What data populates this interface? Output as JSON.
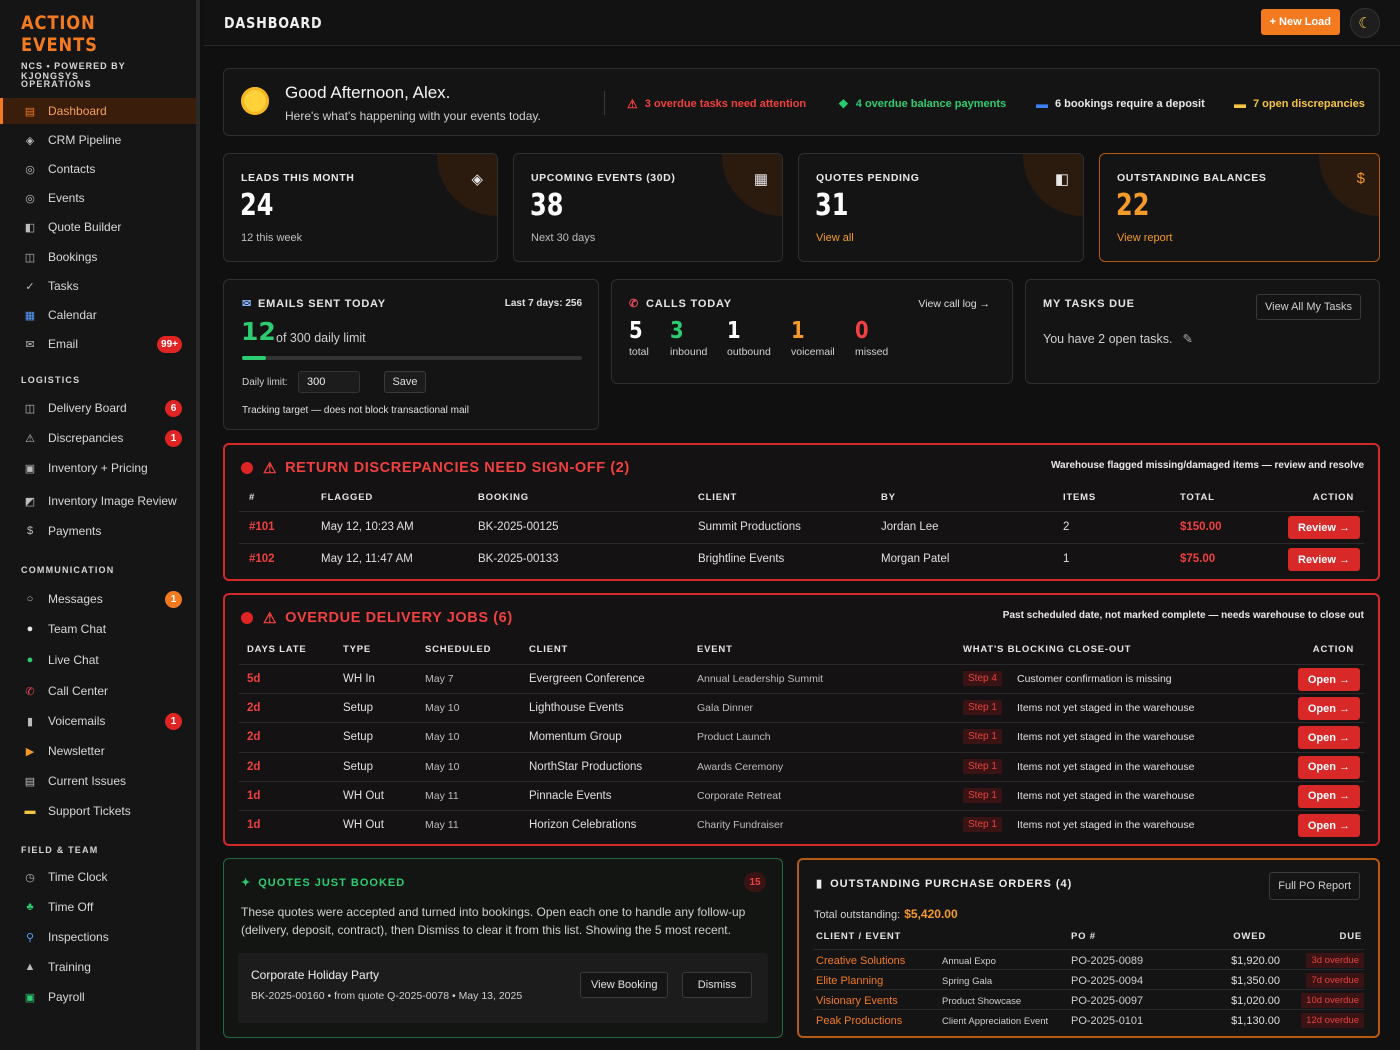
{
  "brand": {
    "title": "ACTION EVENTS",
    "subtitle": "NCS • POWERED BY KJONGSYS"
  },
  "sidebar": {
    "sections": {
      "operations": "OPERATIONS",
      "logistics": "LOGISTICS",
      "communication": "COMMUNICATION",
      "field": "FIELD & TEAM"
    },
    "operations": [
      {
        "label": "Dashboard",
        "icon": "grid-icon"
      },
      {
        "label": "CRM Pipeline",
        "icon": "diamond-icon"
      },
      {
        "label": "Contacts",
        "icon": "target-icon"
      },
      {
        "label": "Events",
        "icon": "target-icon"
      },
      {
        "label": "Quote Builder",
        "icon": "document-icon"
      },
      {
        "label": "Bookings",
        "icon": "book-icon"
      },
      {
        "label": "Tasks",
        "icon": "check-icon"
      },
      {
        "label": "Calendar",
        "icon": "calendar-icon"
      },
      {
        "label": "Email",
        "icon": "mail-icon",
        "badge": "99+"
      }
    ],
    "logistics": [
      {
        "label": "Delivery Board",
        "icon": "board-icon",
        "badge": "6"
      },
      {
        "label": "Discrepancies",
        "icon": "warning-icon",
        "badge": "1"
      },
      {
        "label": "Inventory + Pricing",
        "icon": "box-icon"
      },
      {
        "label": "Inventory Image Review",
        "icon": "image-icon"
      },
      {
        "label": "Payments",
        "icon": "dollar-icon"
      }
    ],
    "communication": [
      {
        "label": "Messages",
        "icon": "circle-icon",
        "badge": "1"
      },
      {
        "label": "Team Chat",
        "icon": "chat-icon"
      },
      {
        "label": "Live Chat",
        "icon": "green-dot-icon"
      },
      {
        "label": "Call Center",
        "icon": "phone-icon"
      },
      {
        "label": "Voicemails",
        "icon": "voicemail-icon",
        "badge": "1"
      },
      {
        "label": "Newsletter",
        "icon": "megaphone-icon"
      },
      {
        "label": "Current Issues",
        "icon": "clipboard-icon"
      },
      {
        "label": "Support Tickets",
        "icon": "ticket-icon"
      }
    ],
    "field": [
      {
        "label": "Time Clock",
        "icon": "clock-icon"
      },
      {
        "label": "Time Off",
        "icon": "palm-icon"
      },
      {
        "label": "Inspections",
        "icon": "magnifier-icon"
      },
      {
        "label": "Training",
        "icon": "graduation-icon"
      },
      {
        "label": "Payroll",
        "icon": "payroll-icon"
      }
    ]
  },
  "header": {
    "title": "DASHBOARD",
    "new_load": "+ New Load"
  },
  "greeting": {
    "title": "Good Afternoon, Alex.",
    "subtitle": "Here's what's happening with your events today.",
    "alerts": [
      {
        "text": "3 overdue tasks need attention",
        "color": "#f04040"
      },
      {
        "text": "4 overdue balance payments",
        "color": "#2ecc71"
      },
      {
        "text": "6 bookings require a deposit",
        "color": "#e8e8e8"
      },
      {
        "text": "7 open discrepancies",
        "color": "#f5c542"
      }
    ]
  },
  "kpis": [
    {
      "label": "LEADS THIS MONTH",
      "value": "24",
      "sub": "12 this week",
      "icon": "diamond-icon"
    },
    {
      "label": "UPCOMING EVENTS (30D)",
      "value": "38",
      "sub": "Next 30 days",
      "icon": "calendar-icon"
    },
    {
      "label": "QUOTES PENDING",
      "value": "31",
      "sub": "View all",
      "icon": "document-icon"
    },
    {
      "label": "OUTSTANDING BALANCES",
      "value": "22",
      "sub": "View report",
      "icon": "moneybag-icon"
    }
  ],
  "emails": {
    "title": "EMAILS SENT TODAY",
    "last7": "Last 7 days: 256",
    "count": "12",
    "limit_text": "of 300 daily limit",
    "progress": 0.04,
    "daily_label": "Daily limit:",
    "daily_value": "300",
    "save": "Save",
    "tracking": "Tracking target — does not block transactional mail"
  },
  "calls": {
    "title": "CALLS TODAY",
    "log": "View call log →",
    "stats": [
      {
        "n": "5",
        "l": "total",
        "color": "#ffffff"
      },
      {
        "n": "3",
        "l": "inbound",
        "color": "#2ecc71"
      },
      {
        "n": "1",
        "l": "outbound",
        "color": "#ffffff"
      },
      {
        "n": "1",
        "l": "voicemail",
        "color": "#f49a2a"
      },
      {
        "n": "0",
        "l": "missed",
        "color": "#f04040"
      }
    ]
  },
  "tasks": {
    "title": "MY TASKS DUE",
    "button": "View All My Tasks",
    "text": "You have 2 open tasks."
  },
  "discrepancies": {
    "title": "RETURN DISCREPANCIES NEED SIGN-OFF (2)",
    "note": "Warehouse flagged missing/damaged items — review and resolve",
    "headers": [
      "#",
      "FLAGGED",
      "BOOKING",
      "CLIENT",
      "BY",
      "ITEMS",
      "TOTAL",
      "ACTION"
    ],
    "rows": [
      {
        "id": "#101",
        "flagged": "May 12, 10:23 AM",
        "booking": "BK-2025-00125",
        "client": "Summit Productions",
        "by": "Jordan Lee",
        "items": "2",
        "total": "$150.00",
        "action": "Review →"
      },
      {
        "id": "#102",
        "flagged": "May 12, 11:47 AM",
        "booking": "BK-2025-00133",
        "client": "Brightline Events",
        "by": "Morgan Patel",
        "items": "1",
        "total": "$75.00",
        "action": "Review →"
      }
    ]
  },
  "overdue": {
    "title": "OVERDUE DELIVERY JOBS (6)",
    "note": "Past scheduled date, not marked complete — needs warehouse to close out",
    "headers": [
      "DAYS LATE",
      "TYPE",
      "SCHEDULED",
      "CLIENT",
      "EVENT",
      "WHAT'S BLOCKING CLOSE-OUT",
      "ACTION"
    ],
    "rows": [
      {
        "late": "5d",
        "type": "WH In",
        "date": "May 7",
        "client": "Evergreen Conference",
        "event": "Annual Leadership Summit",
        "step": "Step 4",
        "block": "Customer confirmation is missing",
        "action": "Open →"
      },
      {
        "late": "2d",
        "type": "Setup",
        "date": "May 10",
        "client": "Lighthouse Events",
        "event": "Gala Dinner",
        "step": "Step 1",
        "block": "Items not yet staged in the warehouse",
        "action": "Open →"
      },
      {
        "late": "2d",
        "type": "Setup",
        "date": "May 10",
        "client": "Momentum Group",
        "event": "Product Launch",
        "step": "Step 1",
        "block": "Items not yet staged in the warehouse",
        "action": "Open →"
      },
      {
        "late": "2d",
        "type": "Setup",
        "date": "May 10",
        "client": "NorthStar Productions",
        "event": "Awards Ceremony",
        "step": "Step 1",
        "block": "Items not yet staged in the warehouse",
        "action": "Open →"
      },
      {
        "late": "1d",
        "type": "WH Out",
        "date": "May 11",
        "client": "Pinnacle Events",
        "event": "Corporate Retreat",
        "step": "Step 1",
        "block": "Items not yet staged in the warehouse",
        "action": "Open →"
      },
      {
        "late": "1d",
        "type": "WH Out",
        "date": "May 11",
        "client": "Horizon Celebrations",
        "event": "Charity Fundraiser",
        "step": "Step 1",
        "block": "Items not yet staged in the warehouse",
        "action": "Open →"
      }
    ]
  },
  "quotes": {
    "title": "QUOTES JUST BOOKED",
    "count": "15",
    "desc": "These quotes were accepted and turned into bookings. Open each one to handle any follow-up (delivery, deposit, contract), then Dismiss to clear it from this list. Showing the  5 most recent.",
    "item": {
      "title": "Corporate Holiday Party",
      "meta": "BK-2025-00160 • from quote Q-2025-0078 • May 13, 2025",
      "view": "View Booking",
      "dismiss": "Dismiss"
    }
  },
  "po": {
    "title": "OUTSTANDING PURCHASE ORDERS (4)",
    "button": "Full PO Report",
    "total_label": "Total outstanding:",
    "total": "$5,420.00",
    "headers": [
      "CLIENT / EVENT",
      "PO #",
      "OWED",
      "DUE"
    ],
    "rows": [
      {
        "client": "Creative Solutions",
        "event": "Annual Expo",
        "po": "PO-2025-0089",
        "owed": "$1,920.00",
        "due": "3d overdue"
      },
      {
        "client": "Elite Planning",
        "event": "Spring Gala",
        "po": "PO-2025-0094",
        "owed": "$1,350.00",
        "due": "7d overdue"
      },
      {
        "client": "Visionary Events",
        "event": "Product Showcase",
        "po": "PO-2025-0097",
        "owed": "$1,020.00",
        "due": "10d overdue"
      },
      {
        "client": "Peak Productions",
        "event": "Client Appreciation Event",
        "po": "PO-2025-0101",
        "owed": "$1,130.00",
        "due": "12d overdue"
      }
    ]
  }
}
